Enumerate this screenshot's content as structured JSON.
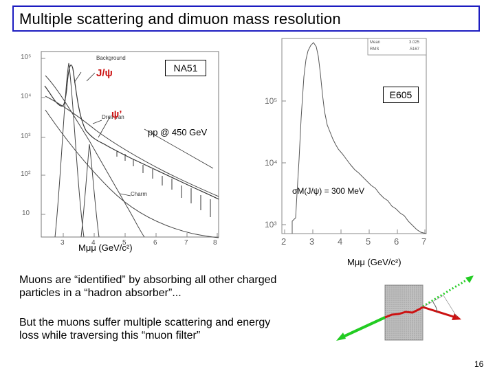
{
  "slide": {
    "title": "Multiple scattering and dimuon mass resolution",
    "page_number": "16"
  },
  "left_plot": {
    "experiment_label": "NA51",
    "jpsi_label": "J/ψ",
    "psiprime_label": "ψ’",
    "beam_label": "pp @ 450 GeV",
    "curve_labels": [
      "Background",
      "Drell-Yan",
      "Charm"
    ],
    "y_ticks": [
      "10⁵",
      "10⁴",
      "10³",
      "10²",
      "10"
    ],
    "x_ticks": [
      "3",
      "4",
      "5",
      "6",
      "7",
      "8"
    ],
    "x_axis_label": "Mμμ (GeV/c²)"
  },
  "right_plot": {
    "experiment_label": "E605",
    "resolution_label": "σM(J/ψ) = 300 MeV",
    "stats": [
      {
        "name": "Mean",
        "value": "3.025"
      },
      {
        "name": "RMS",
        "value": ".5167"
      }
    ],
    "y_ticks": [
      "10⁵",
      "10⁴",
      "10³"
    ],
    "x_ticks": [
      "2",
      "3",
      "4",
      "5",
      "6",
      "7"
    ],
    "x_axis_label": "Mμμ (GeV/c²)"
  },
  "text": {
    "paragraph1": "Muons are “identified” by absorbing all other charged particles in a “hadron absorber”...",
    "paragraph2": "But the muons suffer multiple scattering and energy loss while traversing this “muon filter”"
  },
  "colors": {
    "title_border": "#1c1cc0",
    "red": "#cc1111",
    "green": "#22cc22",
    "absorber": "#b8b8b8"
  }
}
